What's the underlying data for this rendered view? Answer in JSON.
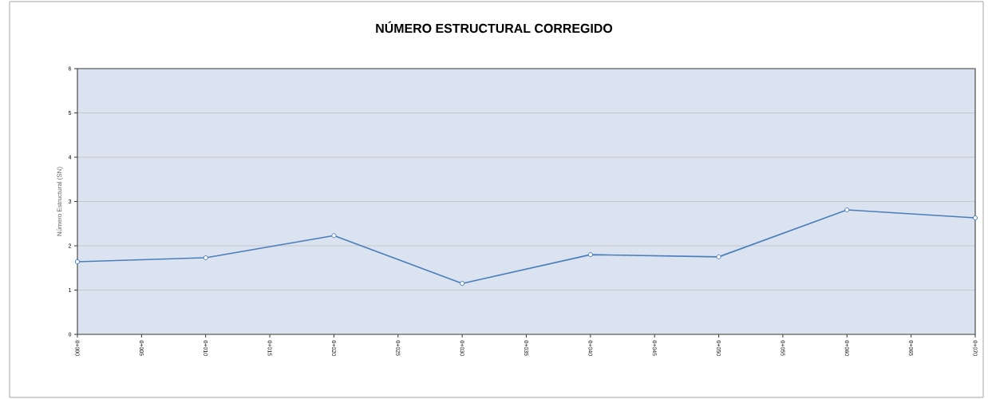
{
  "chart_data": {
    "type": "line",
    "title": "NÚMERO ESTRUCTURAL CORREGIDO",
    "ylabel": "Número Estructural (SN)",
    "categories": [
      "0+000",
      "0+005",
      "0+010",
      "0+015",
      "0+020",
      "0+025",
      "0+030",
      "0+035",
      "0+040",
      "0+045",
      "0+050",
      "0+055",
      "0+060",
      "0+065",
      "0+070"
    ],
    "series": [
      {
        "color": "#4a7ebb",
        "values": [
          1.64,
          null,
          1.73,
          null,
          2.23,
          null,
          1.15,
          null,
          1.8,
          null,
          1.75,
          null,
          2.81,
          null,
          2.63
        ]
      }
    ],
    "ylim": [
      0,
      6
    ],
    "yticks": [
      0,
      1,
      2,
      3,
      4,
      5,
      6
    ],
    "grid": "y",
    "marker": "circle"
  }
}
